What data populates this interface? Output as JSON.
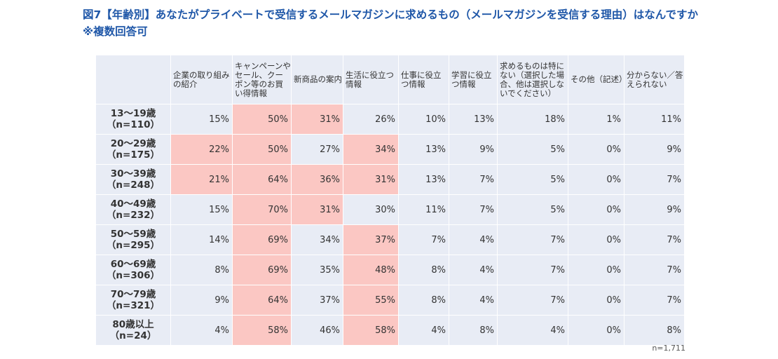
{
  "title": {
    "line1": "図7【年齢別】あなたがプライベートで受信するメールマガジンに求めるもの（メールマガジンを受信する理由）はなんですか",
    "line2": "※複数回答可"
  },
  "chart_data": {
    "type": "table",
    "columns": [
      "企業の取り組みの紹介",
      "キャンペーンやセール、クーポン等のお買い得情報",
      "新商品の案内",
      "生活に役立つ情報",
      "仕事に役立つ情報",
      "学習に役立つ情報",
      "求めるものは特にない（選択した場合、他は選択しないでください）",
      "その他（記述）",
      "分からない／答えられない"
    ],
    "rows": [
      {
        "label": "13〜19歳",
        "n": "（n=110）",
        "values": [
          "15%",
          "50%",
          "31%",
          "26%",
          "10%",
          "13%",
          "18%",
          "1%",
          "11%"
        ],
        "highlight": [
          false,
          true,
          true,
          false,
          false,
          false,
          false,
          false,
          false
        ]
      },
      {
        "label": "20〜29歳",
        "n": "（n=175）",
        "values": [
          "22%",
          "50%",
          "27%",
          "34%",
          "13%",
          "9%",
          "5%",
          "0%",
          "9%"
        ],
        "highlight": [
          true,
          true,
          false,
          true,
          false,
          false,
          false,
          false,
          false
        ]
      },
      {
        "label": "30〜39歳",
        "n": "（n=248）",
        "values": [
          "21%",
          "64%",
          "36%",
          "31%",
          "13%",
          "7%",
          "5%",
          "0%",
          "7%"
        ],
        "highlight": [
          true,
          true,
          true,
          true,
          false,
          false,
          false,
          false,
          false
        ]
      },
      {
        "label": "40〜49歳",
        "n": "（n=232）",
        "values": [
          "15%",
          "70%",
          "31%",
          "30%",
          "11%",
          "7%",
          "5%",
          "0%",
          "9%"
        ],
        "highlight": [
          false,
          true,
          true,
          false,
          false,
          false,
          false,
          false,
          false
        ]
      },
      {
        "label": "50〜59歳",
        "n": "（n=295）",
        "values": [
          "14%",
          "69%",
          "34%",
          "37%",
          "7%",
          "4%",
          "7%",
          "0%",
          "7%"
        ],
        "highlight": [
          false,
          true,
          false,
          true,
          false,
          false,
          false,
          false,
          false
        ]
      },
      {
        "label": "60〜69歳",
        "n": "（n=306）",
        "values": [
          "8%",
          "69%",
          "35%",
          "48%",
          "8%",
          "4%",
          "7%",
          "0%",
          "7%"
        ],
        "highlight": [
          false,
          true,
          false,
          true,
          false,
          false,
          false,
          false,
          false
        ]
      },
      {
        "label": "70〜79歳",
        "n": "（n=321）",
        "values": [
          "9%",
          "64%",
          "37%",
          "55%",
          "8%",
          "4%",
          "7%",
          "0%",
          "7%"
        ],
        "highlight": [
          false,
          true,
          false,
          true,
          false,
          false,
          false,
          false,
          false
        ]
      },
      {
        "label": "80歳以上",
        "n": "（n=24）",
        "values": [
          "4%",
          "58%",
          "46%",
          "58%",
          "4%",
          "8%",
          "4%",
          "0%",
          "8%"
        ],
        "highlight": [
          false,
          true,
          false,
          true,
          false,
          false,
          false,
          false,
          false
        ]
      }
    ]
  },
  "note": "n=1,711",
  "colors": {
    "title": "#1f57a8",
    "cell_bg": "#e8ecf5",
    "highlight_bg": "#fbc7c3"
  }
}
